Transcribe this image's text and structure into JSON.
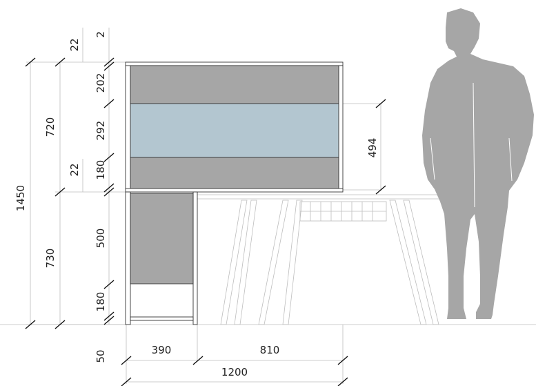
{
  "colors": {
    "panel_gray": "#a6a6a6",
    "panel_blue": "#b3c6d0",
    "person": "#a6a6a6",
    "line": "#333333"
  },
  "dimensions": {
    "overall_height": "1450",
    "upper_height": "720",
    "lower_height": "730",
    "top_thickness": "22",
    "top_gap": "2",
    "panel_top": "202",
    "panel_middle": "292",
    "panel_bottom": "180",
    "shelf_thickness": "22",
    "screen_height": "494",
    "lower_panel": "500",
    "lower_gap": "180",
    "base_offset": "50",
    "width_left": "390",
    "width_right": "810",
    "overall_width": "1200"
  }
}
